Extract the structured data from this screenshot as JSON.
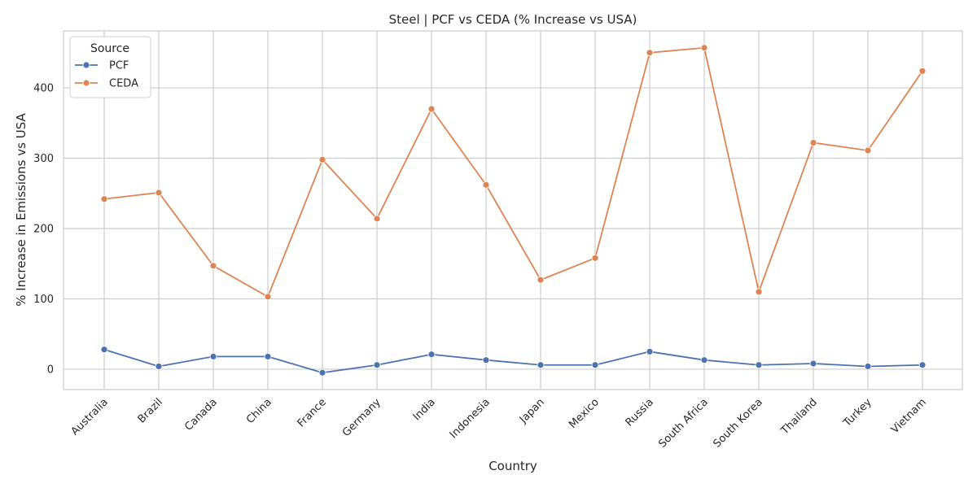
{
  "chart_data": {
    "type": "line",
    "title": "Steel | PCF vs CEDA (% Increase vs USA)",
    "xlabel": "Country",
    "ylabel": "% Increase in Emissions vs USA",
    "categories": [
      "Australia",
      "Brazil",
      "Canada",
      "China",
      "France",
      "Germany",
      "India",
      "Indonesia",
      "Japan",
      "Mexico",
      "Russia",
      "South Africa",
      "South Korea",
      "Thailand",
      "Turkey",
      "Vietnam"
    ],
    "series": [
      {
        "name": "PCF",
        "color": "#4c72b0",
        "values": [
          28,
          4,
          18,
          18,
          -5,
          6,
          21,
          13,
          6,
          6,
          25,
          13,
          6,
          8,
          4,
          6
        ]
      },
      {
        "name": "CEDA",
        "color": "#dd8452",
        "values": [
          242,
          251,
          147,
          103,
          298,
          214,
          370,
          262,
          127,
          158,
          450,
          457,
          110,
          322,
          311,
          424
        ]
      }
    ],
    "ylim": [
      -29,
      481
    ],
    "yticks": [
      0,
      100,
      200,
      300,
      400
    ],
    "grid": true,
    "legend": {
      "title": "Source",
      "position": "top-left"
    }
  }
}
